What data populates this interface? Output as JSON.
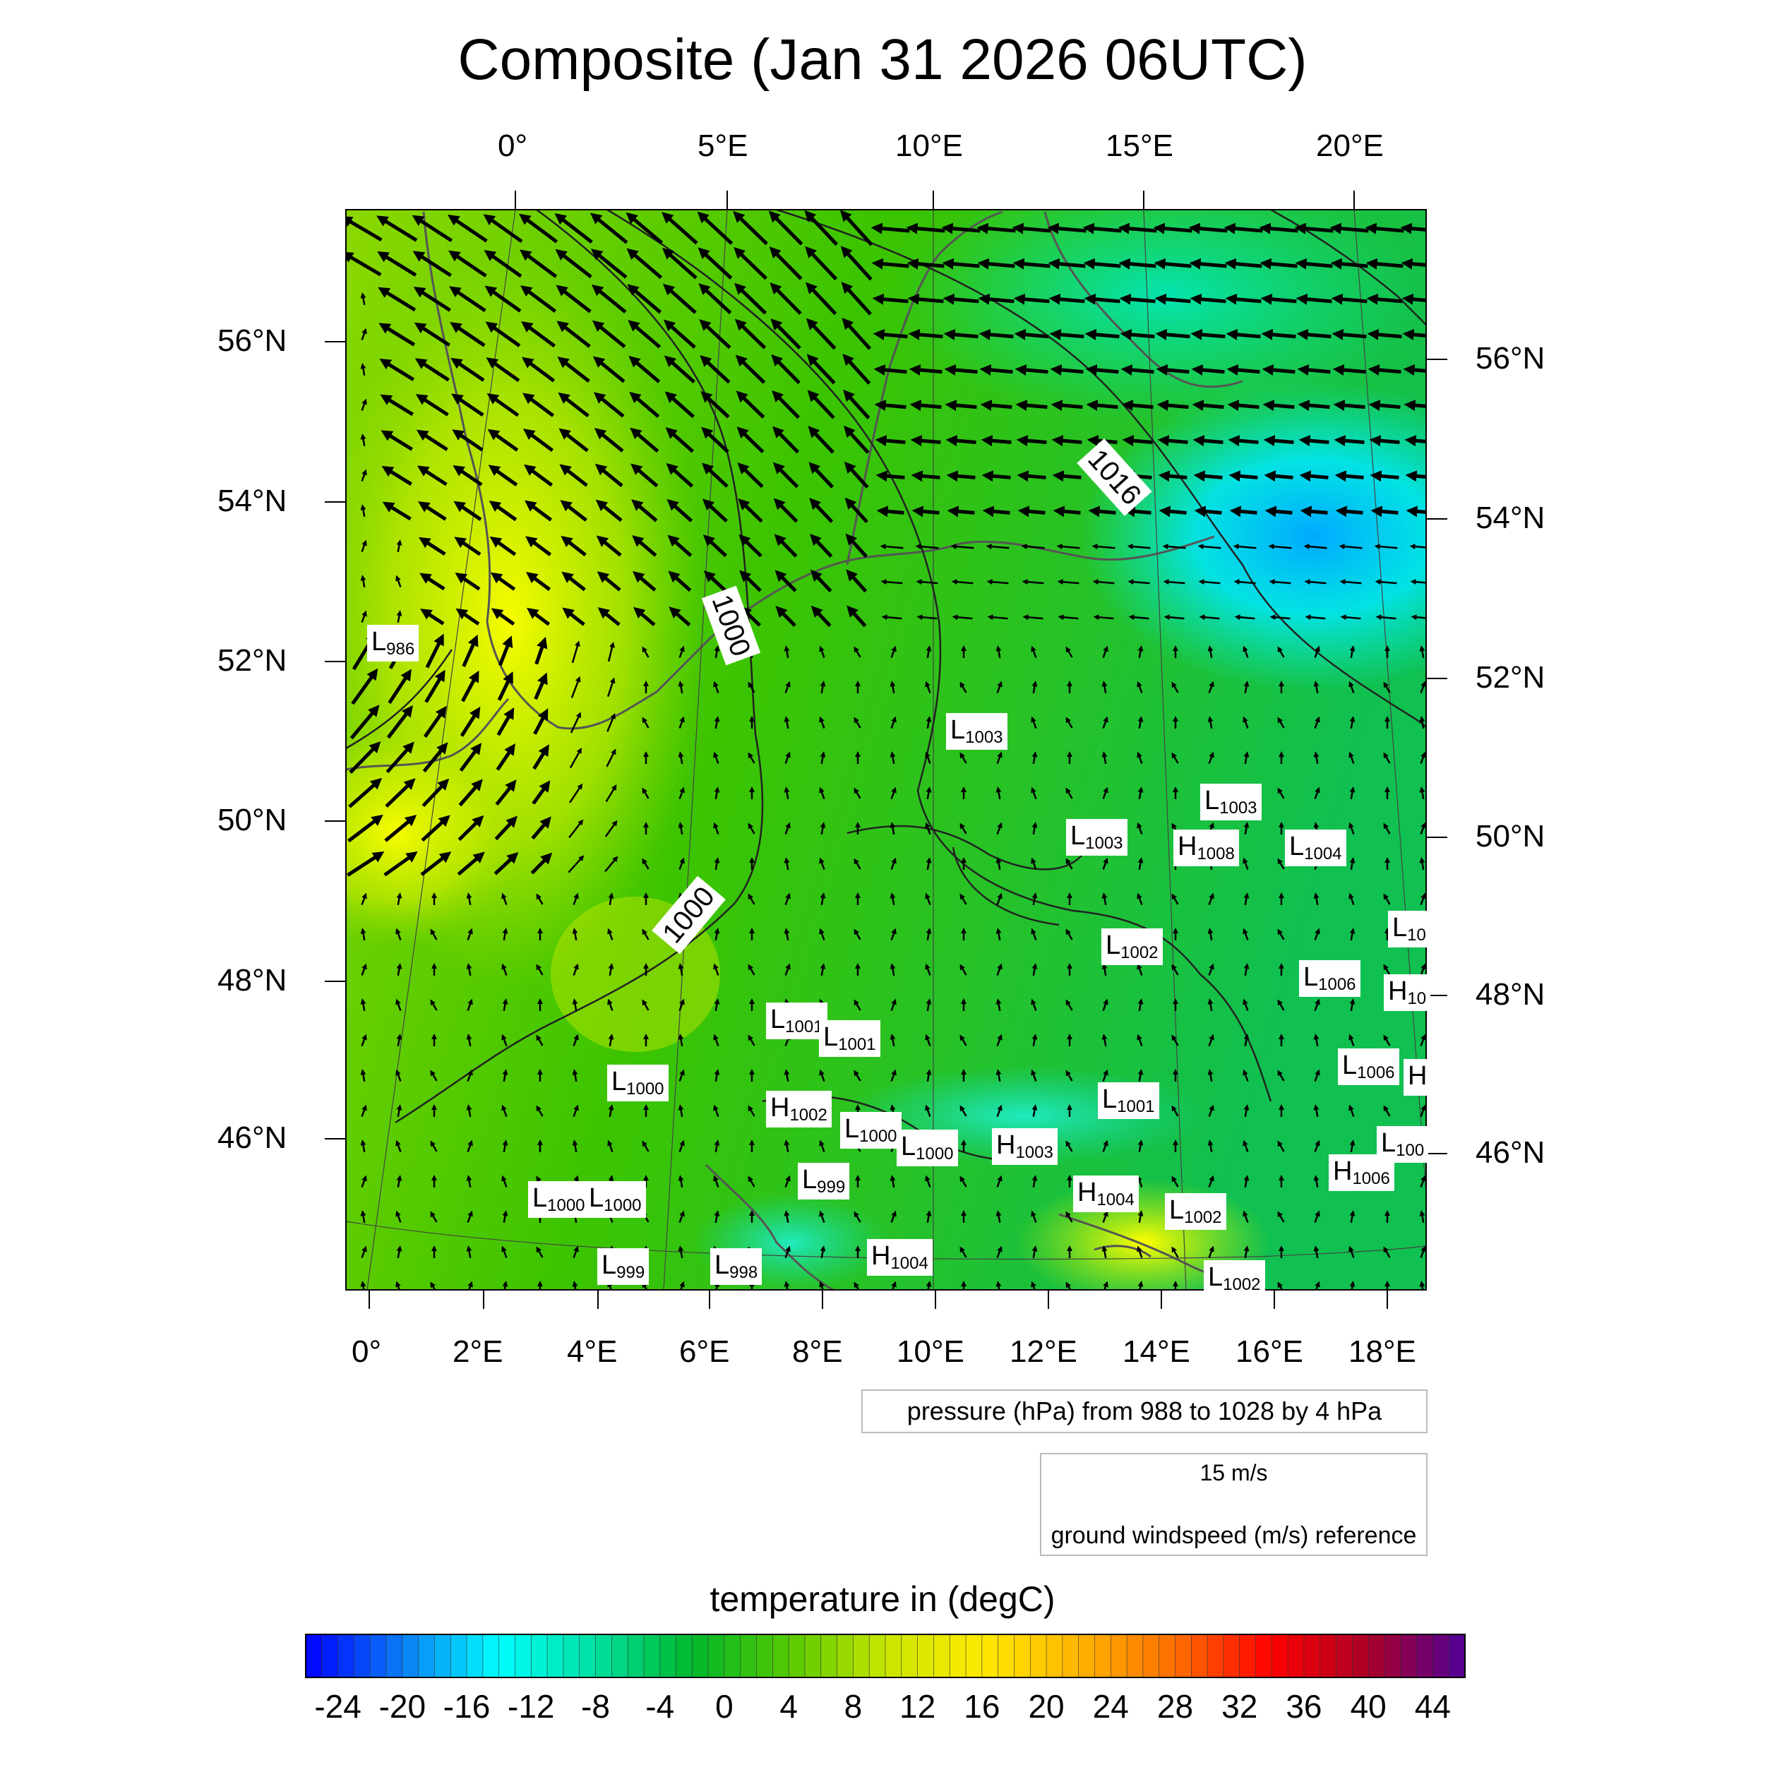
{
  "title": "Composite (Jan 31 2026 06UTC)",
  "top_lon_labels": [
    "0°",
    "5°E",
    "10°E",
    "15°E",
    "20°E"
  ],
  "bottom_lon_labels": [
    "0°",
    "2°E",
    "4°E",
    "6°E",
    "8°E",
    "10°E",
    "12°E",
    "14°E",
    "16°E",
    "18°E"
  ],
  "left_lat_labels": [
    "56°N",
    "54°N",
    "52°N",
    "50°N",
    "48°N",
    "46°N"
  ],
  "right_lat_labels": [
    "56°N",
    "54°N",
    "52°N",
    "50°N",
    "48°N",
    "46°N"
  ],
  "contour_labels": [
    "1000",
    "1000",
    "1016"
  ],
  "pressure_points": [
    {
      "t": "L",
      "v": "986"
    },
    {
      "t": "L",
      "v": "1003"
    },
    {
      "t": "L",
      "v": "1003"
    },
    {
      "t": "L",
      "v": "1003"
    },
    {
      "t": "H",
      "v": "1008"
    },
    {
      "t": "L",
      "v": "1004"
    },
    {
      "t": "L",
      "v": "10"
    },
    {
      "t": "L",
      "v": "1002"
    },
    {
      "t": "L",
      "v": "1006"
    },
    {
      "t": "H",
      "v": "10"
    },
    {
      "t": "L",
      "v": "1001"
    },
    {
      "t": "L",
      "v": "1001"
    },
    {
      "t": "L",
      "v": "1006"
    },
    {
      "t": "H",
      "v": ""
    },
    {
      "t": "L",
      "v": "1000"
    },
    {
      "t": "H",
      "v": "1002"
    },
    {
      "t": "L",
      "v": "1000"
    },
    {
      "t": "L",
      "v": "1001"
    },
    {
      "t": "L",
      "v": "1000"
    },
    {
      "t": "H",
      "v": "1003"
    },
    {
      "t": "L",
      "v": "100"
    },
    {
      "t": "H",
      "v": "1006"
    },
    {
      "t": "L",
      "v": "999"
    },
    {
      "t": "H",
      "v": "1004"
    },
    {
      "t": "L",
      "v": "1002"
    },
    {
      "t": "L",
      "v": "1000"
    },
    {
      "t": "L",
      "v": "1000"
    },
    {
      "t": "L",
      "v": "999"
    },
    {
      "t": "L",
      "v": "998"
    },
    {
      "t": "H",
      "v": "1004"
    },
    {
      "t": "L",
      "v": "1002"
    }
  ],
  "pressure_info": "pressure (hPa) from 988 to 1028 by 4 hPa",
  "wind_reference": {
    "speed_label": "15 m/s",
    "caption": "ground windspeed (m/s) reference"
  },
  "colorbar": {
    "title": "temperature in (degC)",
    "labels": [
      "-24",
      "-20",
      "-16",
      "-12",
      "-8",
      "-4",
      "0",
      "4",
      "8",
      "12",
      "16",
      "20",
      "24",
      "28",
      "32",
      "36",
      "40",
      "44"
    ],
    "min": -26,
    "max": 46,
    "stops": [
      "#0000ff",
      "#0a7cf5",
      "#00ffff",
      "#00e0a0",
      "#00b82c",
      "#55c800",
      "#c8e600",
      "#ffea00",
      "#ffb400",
      "#ff6e00",
      "#ff0000",
      "#aa0028",
      "#500096"
    ]
  }
}
